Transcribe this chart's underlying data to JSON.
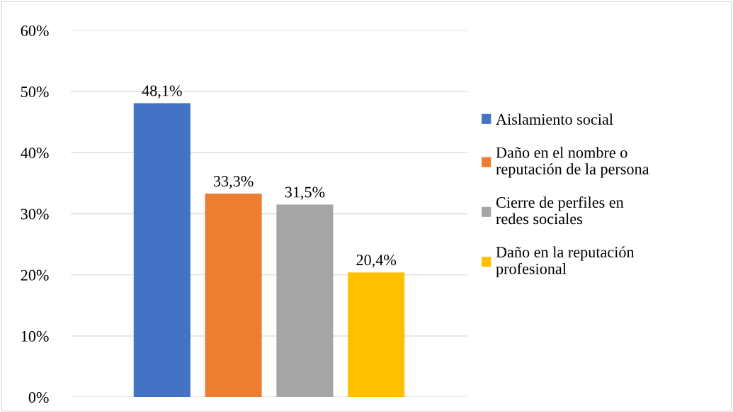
{
  "chart_data": {
    "type": "bar",
    "categories": [
      null
    ],
    "series": [
      {
        "name": "Aislamiento social",
        "color": "#4472c4",
        "values": [
          48.1
        ],
        "value_labels": [
          "48,1%"
        ]
      },
      {
        "name": "Daño en el nombre o reputación de la persona",
        "color": "#ed7d31",
        "values": [
          33.3
        ],
        "value_labels": [
          "33,3%"
        ]
      },
      {
        "name": "Cierre de perfiles en redes sociales",
        "color": "#a5a5a5",
        "values": [
          31.5
        ],
        "value_labels": [
          "31,5%"
        ]
      },
      {
        "name": "Daño en la reputación profesional",
        "color": "#ffc000",
        "values": [
          20.4
        ],
        "value_labels": [
          "20,4%"
        ]
      }
    ],
    "ylim": [
      0,
      60
    ],
    "yticks": [
      {
        "value": 0,
        "label": "0%"
      },
      {
        "value": 10,
        "label": "10%"
      },
      {
        "value": 20,
        "label": "20%"
      },
      {
        "value": 30,
        "label": "30%"
      },
      {
        "value": 40,
        "label": "40%"
      },
      {
        "value": 50,
        "label": "50%"
      },
      {
        "value": 60,
        "label": "60%"
      }
    ],
    "grid": "y",
    "legend": "right"
  }
}
